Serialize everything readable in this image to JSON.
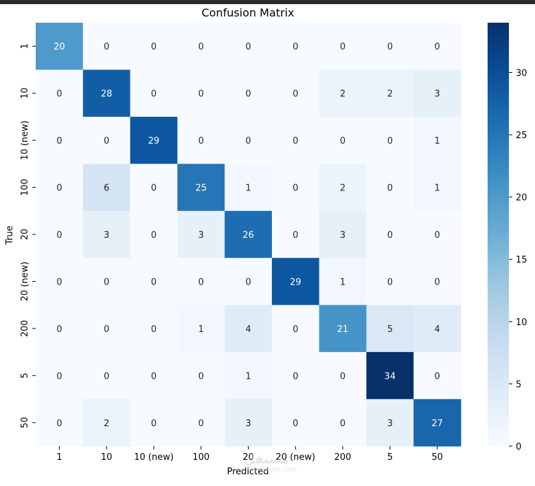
{
  "chart_data": {
    "type": "heatmap",
    "title": "Confusion Matrix",
    "xlabel": "Predicted",
    "ylabel": "True",
    "x_categories": [
      "1",
      "10",
      "10 (new)",
      "100",
      "20",
      "20 (new)",
      "200",
      "5",
      "50"
    ],
    "y_categories": [
      "1",
      "10",
      "10 (new)",
      "100",
      "20",
      "20 (new)",
      "200",
      "5",
      "50"
    ],
    "values": [
      [
        20,
        0,
        0,
        0,
        0,
        0,
        0,
        0,
        0
      ],
      [
        0,
        28,
        0,
        0,
        0,
        0,
        2,
        2,
        3
      ],
      [
        0,
        0,
        29,
        0,
        0,
        0,
        0,
        0,
        1
      ],
      [
        0,
        6,
        0,
        25,
        1,
        0,
        2,
        0,
        1
      ],
      [
        0,
        3,
        0,
        3,
        26,
        0,
        3,
        0,
        0
      ],
      [
        0,
        0,
        0,
        0,
        0,
        29,
        1,
        0,
        0
      ],
      [
        0,
        0,
        0,
        1,
        4,
        0,
        21,
        5,
        4
      ],
      [
        0,
        0,
        0,
        0,
        1,
        0,
        0,
        34,
        0
      ],
      [
        0,
        2,
        0,
        0,
        3,
        0,
        0,
        3,
        27
      ]
    ],
    "colorbar": {
      "min": 0,
      "max": 34,
      "ticks": [
        0,
        5,
        10,
        15,
        20,
        25,
        30
      ]
    },
    "colormap": "Blues",
    "grid": false,
    "watermark": "مستقل mostaql.com"
  }
}
